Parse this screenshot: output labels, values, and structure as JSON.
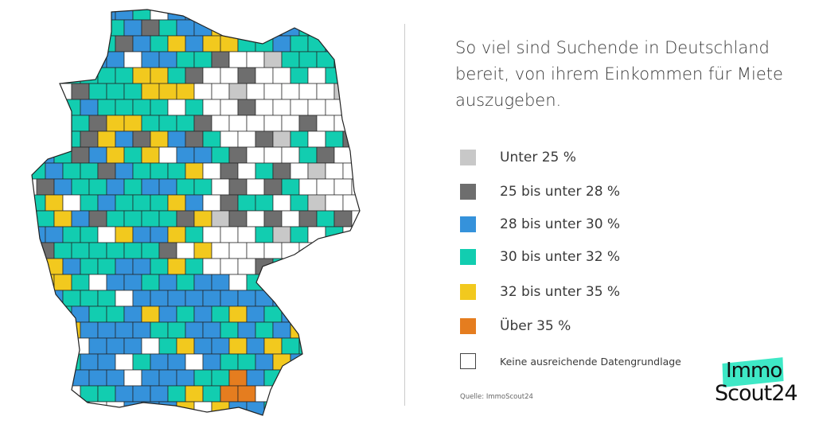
{
  "title": "So viel sind Suchende in Deutschland bereit, von ihrem Einkommen für Miete auszugeben.",
  "legend": [
    {
      "label": "Unter 25 %",
      "color": "#c8c8c8"
    },
    {
      "label": "25 bis unter 28 %",
      "color": "#6e6e6e"
    },
    {
      "label": "28 bis unter 30 %",
      "color": "#3592db"
    },
    {
      "label": "30 bis unter 32 %",
      "color": "#12cdb0"
    },
    {
      "label": "32 bis unter 35 %",
      "color": "#f2c91e"
    },
    {
      "label": "Über 35 %",
      "color": "#e57d1f"
    },
    {
      "label": "Keine ausreichende Datengrundlage",
      "color": "#ffffff"
    }
  ],
  "source": "Quelle: ImmoScout24",
  "logo": {
    "line1": "Immo",
    "line2": "Scout24"
  }
}
